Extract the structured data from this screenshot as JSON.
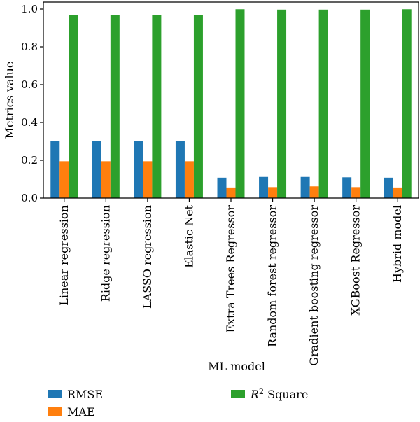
{
  "chart_data": {
    "type": "bar",
    "xlabel": "ML model",
    "ylabel": "Metrics value",
    "ylim": [
      0,
      1.0
    ],
    "yticks": [
      0.0,
      0.2,
      0.4,
      0.6,
      0.8,
      1.0
    ],
    "ytick_labels": [
      "0.0",
      "0.2",
      "0.4",
      "0.6",
      "0.8",
      "1.0"
    ],
    "grid": false,
    "legend_position": "bottom",
    "categories": [
      "Linear regression",
      "Ridge regression",
      "LASSO regression",
      "Elastic Net",
      "Extra Trees Regressor",
      "Random forest regressor",
      "Gradient boosting regressor",
      "XGBoost Regressor",
      "Hybrid model"
    ],
    "series": [
      {
        "name": "RMSE",
        "color": "#1f77b4",
        "values": [
          0.302,
          0.302,
          0.302,
          0.302,
          0.108,
          0.112,
          0.112,
          0.11,
          0.108
        ]
      },
      {
        "name": "MAE",
        "color": "#ff7f0e",
        "values": [
          0.195,
          0.195,
          0.195,
          0.195,
          0.056,
          0.058,
          0.062,
          0.058,
          0.056
        ]
      },
      {
        "name": "R² Square",
        "name_base": "R",
        "name_sup": "2",
        "name_rest": " Square",
        "color": "#2ca02c",
        "values": [
          0.97,
          0.97,
          0.97,
          0.97,
          0.999,
          0.997,
          0.997,
          0.997,
          0.999
        ]
      }
    ]
  }
}
